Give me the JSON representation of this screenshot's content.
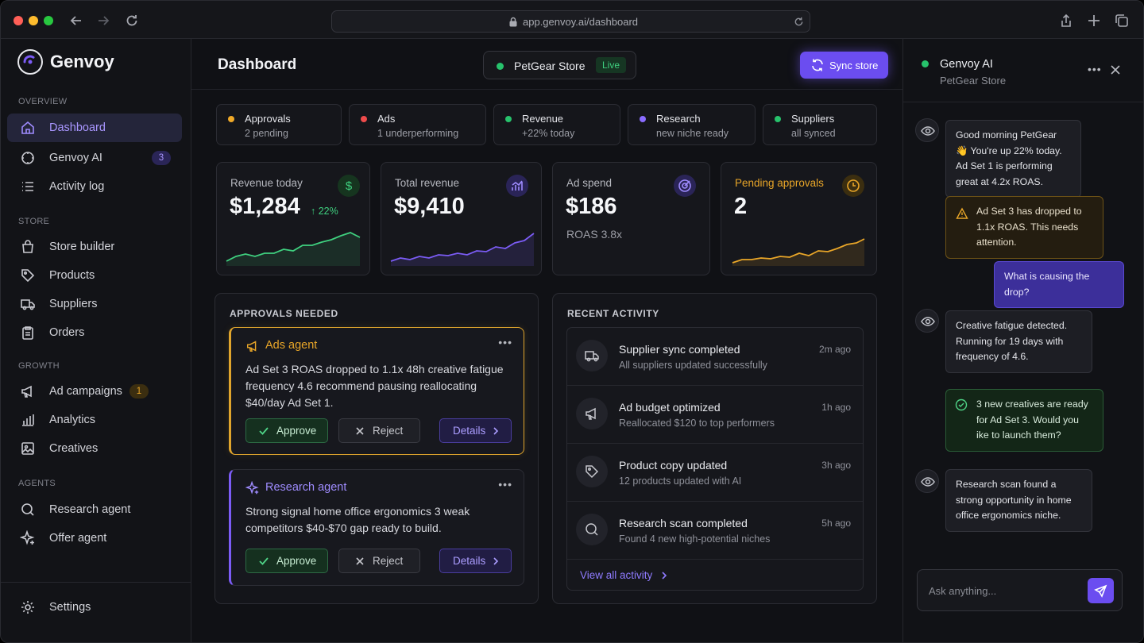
{
  "browser": {
    "url": "app.genvoy.ai/dashboard"
  },
  "sidebar": {
    "brand": "Genvoy",
    "sections": {
      "overview": "OVERVIEW",
      "store": "STORE",
      "growth": "GROWTH",
      "agents": "AGENTS"
    },
    "items": [
      {
        "label": "Dashboard",
        "icon": "home-icon",
        "active": true
      },
      {
        "label": "Genvoy AI",
        "icon": "circle-icon",
        "badge": "3"
      },
      {
        "label": "Activity log",
        "icon": "list-icon"
      },
      {
        "label": "Store builder",
        "icon": "bag-icon"
      },
      {
        "label": "Products",
        "icon": "tag-icon"
      },
      {
        "label": "Suppliers",
        "icon": "truck-icon"
      },
      {
        "label": "Orders",
        "icon": "clipboard-icon"
      },
      {
        "label": "Ad campaigns",
        "icon": "megaphone-icon",
        "badge": "1"
      },
      {
        "label": "Analytics",
        "icon": "bar-chart-icon"
      },
      {
        "label": "Creatives",
        "icon": "image-icon"
      },
      {
        "label": "Research agent",
        "icon": "search-icon"
      },
      {
        "label": "Offer agent",
        "icon": "sparkle-icon"
      }
    ],
    "settings": "Settings"
  },
  "header": {
    "title": "Dashboard",
    "store_name": "PetGear Store",
    "store_status": "Live",
    "sync_label": "Sync store"
  },
  "status_chips": [
    {
      "title": "Approvals",
      "sub": "2 pending",
      "color": "#f0a928"
    },
    {
      "title": "Ads",
      "sub": "1 underperforming",
      "color": "#ee4b4b"
    },
    {
      "title": "Revenue",
      "sub": "+22% today",
      "color": "#27c26c"
    },
    {
      "title": "Research",
      "sub": "new niche ready",
      "color": "#8a6cff"
    },
    {
      "title": "Suppliers",
      "sub": "all synced",
      "color": "#27c26c"
    }
  ],
  "metrics": {
    "revenue_today": {
      "label": "Revenue today",
      "value": "$1,284",
      "change": "22%",
      "icon": "dollar-icon",
      "color": "#2fbf62"
    },
    "total_revenue": {
      "label": "Total revenue",
      "value": "$9,410",
      "icon": "chart-icon",
      "color": "#7b5cf5"
    },
    "ad_spend": {
      "label": "Ad spend",
      "value": "$186",
      "sub": "ROAS 3.8x",
      "icon": "target-icon",
      "color": "#8a6cff"
    },
    "pending": {
      "label": "Pending approvals",
      "value": "2",
      "icon": "clock-icon",
      "color": "#e9a628"
    }
  },
  "approvals": {
    "heading": "APPROVALS NEEDED",
    "cards": [
      {
        "title": "Ads agent",
        "body": "Ad Set 3 ROAS dropped to 1.1x 48h creative fatigue frequency 4.6 recommend pausing reallocating $40/day Ad Set 1.",
        "approve": "Approve",
        "reject": "Reject",
        "details": "Details"
      },
      {
        "title": "Research agent",
        "body": "Strong signal home office ergonomics 3 weak competitors $40-$70 gap ready to build.",
        "approve": "Approve",
        "reject": "Reject",
        "details": "Details"
      }
    ]
  },
  "activity": {
    "heading": "RECENT ACTIVITY",
    "items": [
      {
        "title": "Supplier sync completed",
        "sub": "All suppliers updated successfully",
        "time": "2m ago",
        "icon": "truck-icon"
      },
      {
        "title": "Ad budget optimized",
        "sub": "Reallocated $120 to top performers",
        "time": "1h ago",
        "icon": "megaphone-icon"
      },
      {
        "title": "Product copy updated",
        "sub": "12 products updated with AI",
        "time": "3h ago",
        "icon": "tag-icon"
      },
      {
        "title": "Research scan completed",
        "sub": "Found 4 new high-potential niches",
        "time": "5h ago",
        "icon": "search-icon"
      }
    ],
    "view_all": "View all activity"
  },
  "chat": {
    "name": "Genvoy AI",
    "store": "PetGear Store",
    "messages": [
      {
        "role": "bot",
        "text": "Good morning PetGear 👋 You're up 22% today. Ad Set 1 is performing great at 4.2x ROAS."
      },
      {
        "role": "warn",
        "text": "Ad Set 3 has dropped to 1.1x ROAS. This needs attention."
      },
      {
        "role": "user",
        "text": "What is causing the drop?"
      },
      {
        "role": "bot",
        "text": "Creative fatigue detected. Running for 19 days with frequency of 4.6."
      },
      {
        "role": "ok",
        "text": "3 new creatives are ready for Ad Set 3. Would you ike to launch them?"
      },
      {
        "role": "bot",
        "text": "Research scan found a strong opportunity in home office ergonomics niche."
      }
    ],
    "input_placeholder": "Ask anything..."
  }
}
